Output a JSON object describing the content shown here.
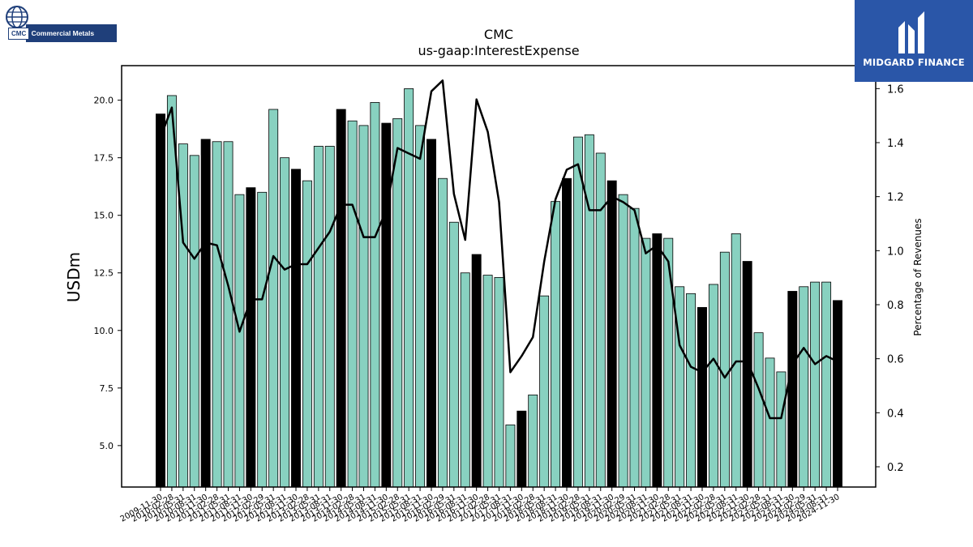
{
  "logos": {
    "company_tag": "CMC",
    "company_name": "Commercial Metals",
    "sponsor_name": "MIDGARD FINANCE"
  },
  "chart_data": {
    "type": "bar",
    "title": "CMC",
    "subtitle": "us-gaap:InterestExpense",
    "ylabel": "USDm",
    "y2label": "Percentage of Revenues",
    "ylim": [
      3.2,
      21.5
    ],
    "y2lim": [
      0.125,
      1.685
    ],
    "yticks": [
      5.0,
      7.5,
      10.0,
      12.5,
      15.0,
      17.5,
      20.0
    ],
    "ytick_labels": [
      "5.0",
      "7.5",
      "10.0",
      "12.5",
      "15.0",
      "17.5",
      "20.0"
    ],
    "y2ticks": [
      0.2,
      0.4,
      0.6,
      0.8,
      1.0,
      1.2,
      1.4,
      1.6
    ],
    "y2tick_labels": [
      "0.2",
      "0.4",
      "0.6",
      "0.8",
      "1.0",
      "1.2",
      "1.4",
      "1.6"
    ],
    "colors": {
      "annual_bar": "#000000",
      "quarter_bar": "#88d1c0",
      "line": "#000000"
    },
    "categories": [
      "2009-11-30",
      "2010-02-28",
      "2010-05-31",
      "2010-08-31",
      "2010-11-30",
      "2011-02-28",
      "2011-05-31",
      "2011-08-31",
      "2011-11-30",
      "2012-02-29",
      "2012-05-31",
      "2012-08-31",
      "2012-11-30",
      "2013-02-28",
      "2013-05-31",
      "2013-08-31",
      "2013-11-30",
      "2014-02-28",
      "2014-05-31",
      "2014-08-31",
      "2014-11-30",
      "2015-02-28",
      "2015-05-31",
      "2015-08-31",
      "2015-11-30",
      "2016-02-29",
      "2016-05-31",
      "2016-08-31",
      "2016-11-30",
      "2017-02-28",
      "2017-05-31",
      "2017-08-31",
      "2017-11-30",
      "2018-02-28",
      "2018-05-31",
      "2018-08-31",
      "2018-11-30",
      "2019-02-28",
      "2019-05-31",
      "2019-08-31",
      "2019-11-30",
      "2020-02-29",
      "2020-05-31",
      "2020-08-31",
      "2020-11-30",
      "2021-02-28",
      "2021-05-31",
      "2021-08-31",
      "2021-11-30",
      "2022-02-28",
      "2022-05-31",
      "2022-08-31",
      "2022-11-30",
      "2023-02-28",
      "2023-05-31",
      "2023-08-31",
      "2023-11-30",
      "2024-02-29",
      "2024-05-31",
      "2024-08-31",
      "2024-11-30"
    ],
    "bar_types": [
      "annual",
      "quarter",
      "quarter",
      "quarter",
      "annual",
      "quarter",
      "quarter",
      "quarter",
      "annual",
      "quarter",
      "quarter",
      "quarter",
      "annual",
      "quarter",
      "quarter",
      "quarter",
      "annual",
      "quarter",
      "quarter",
      "quarter",
      "annual",
      "quarter",
      "quarter",
      "quarter",
      "annual",
      "quarter",
      "quarter",
      "quarter",
      "annual",
      "quarter",
      "quarter",
      "quarter",
      "annual",
      "quarter",
      "quarter",
      "quarter",
      "annual",
      "quarter",
      "quarter",
      "quarter",
      "annual",
      "quarter",
      "quarter",
      "quarter",
      "annual",
      "quarter",
      "quarter",
      "quarter",
      "annual",
      "quarter",
      "quarter",
      "quarter",
      "annual",
      "quarter",
      "quarter",
      "quarter",
      "annual",
      "quarter",
      "quarter",
      "quarter",
      "annual"
    ],
    "series": [
      {
        "values": [
          19.4,
          20.2,
          18.1,
          17.6,
          18.3,
          18.2,
          18.2,
          15.9,
          16.2,
          16.0,
          19.6,
          17.5,
          17.0,
          16.5,
          18.0,
          18.0,
          19.6,
          19.1,
          18.9,
          19.9,
          19.0,
          19.2,
          20.5,
          18.9,
          18.3,
          16.6,
          14.7,
          12.5,
          13.3,
          12.4,
          12.3,
          5.9,
          6.5,
          7.2,
          11.5,
          15.6,
          16.6,
          18.4,
          18.5,
          17.7,
          16.5,
          15.9,
          15.3,
          14.0,
          14.2,
          14.0,
          11.9,
          11.6,
          11.0,
          12.0,
          13.4,
          14.2,
          13.0,
          9.9,
          8.8,
          8.2,
          11.7,
          11.9,
          12.1,
          12.1,
          11.3
        ]
      },
      {
        "axis": "right",
        "values": [
          1.42,
          1.53,
          1.03,
          0.97,
          1.03,
          1.02,
          0.87,
          0.7,
          0.82,
          0.82,
          0.98,
          0.93,
          0.95,
          0.95,
          1.01,
          1.07,
          1.17,
          1.17,
          1.05,
          1.05,
          1.15,
          1.38,
          1.36,
          1.34,
          1.59,
          1.63,
          1.21,
          1.04,
          1.56,
          1.44,
          1.18,
          0.55,
          0.61,
          0.68,
          0.96,
          1.19,
          1.3,
          1.32,
          1.15,
          1.15,
          1.2,
          1.18,
          1.15,
          0.99,
          1.02,
          0.96,
          0.65,
          0.57,
          0.55,
          0.6,
          0.53,
          0.59,
          0.59,
          0.49,
          0.38,
          0.38,
          0.58,
          0.64,
          0.58,
          0.61,
          0.59
        ]
      }
    ]
  }
}
